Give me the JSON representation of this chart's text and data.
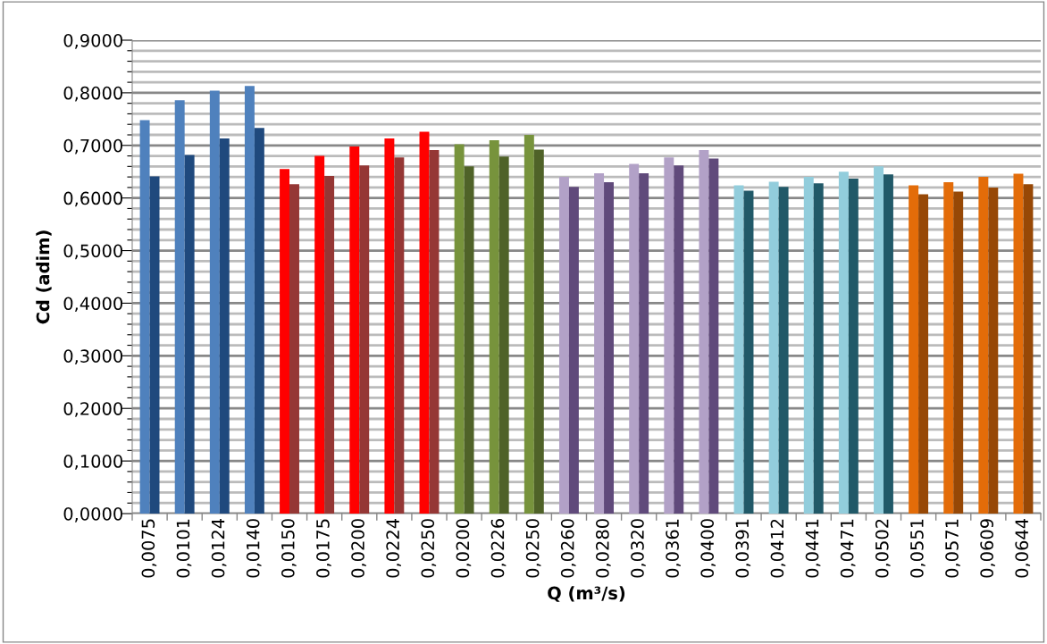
{
  "chart_data": {
    "type": "bar",
    "xlabel": "Q (m³/s)",
    "ylabel": "Cd (adim)",
    "categories": [
      "0,0075",
      "0,0101",
      "0,0124",
      "0,0140",
      "0,0150",
      "0,0175",
      "0,0200",
      "0,0224",
      "0,0250",
      "0,0200",
      "0,0226",
      "0,0250",
      "0,0260",
      "0,0280",
      "0,0320",
      "0,0361",
      "0,0400",
      "0,0391",
      "0,0412",
      "0,0441",
      "0,0471",
      "0,0502",
      "0,0551",
      "0,0571",
      "0,0609",
      "0,0644"
    ],
    "series": [
      {
        "values": [
          0.748,
          0.786,
          0.804,
          0.813,
          0.655,
          0.68,
          0.698,
          0.713,
          0.726,
          0.702,
          0.71,
          0.72,
          0.64,
          0.647,
          0.665,
          0.677,
          0.691,
          0.624,
          0.631,
          0.64,
          0.65,
          0.66,
          0.624,
          0.63,
          0.64,
          0.646
        ],
        "colors": [
          "#4f81bd",
          "#4f81bd",
          "#4f81bd",
          "#4f81bd",
          "#ff0000",
          "#ff0000",
          "#ff0000",
          "#ff0000",
          "#ff0000",
          "#77933c",
          "#77933c",
          "#77933c",
          "#b2a1c7",
          "#b2a1c7",
          "#b2a1c7",
          "#b2a1c7",
          "#b2a1c7",
          "#92cddc",
          "#92cddc",
          "#92cddc",
          "#92cddc",
          "#92cddc",
          "#e36c09",
          "#e36c09",
          "#e36c09",
          "#e36c09"
        ]
      },
      {
        "values": [
          0.641,
          0.682,
          0.713,
          0.733,
          0.626,
          0.642,
          0.662,
          0.677,
          0.691,
          0.66,
          0.679,
          0.692,
          0.621,
          0.63,
          0.647,
          0.662,
          0.675,
          0.614,
          0.621,
          0.628,
          0.637,
          0.645,
          0.607,
          0.612,
          0.62,
          0.626
        ],
        "colors": [
          "#1f497d",
          "#1f497d",
          "#1f497d",
          "#1f497d",
          "#953735",
          "#953735",
          "#953735",
          "#953735",
          "#953735",
          "#4f6228",
          "#4f6228",
          "#4f6228",
          "#604a7b",
          "#604a7b",
          "#604a7b",
          "#604a7b",
          "#604a7b",
          "#215968",
          "#215968",
          "#215968",
          "#215968",
          "#215968",
          "#974806",
          "#974806",
          "#974806",
          "#974806"
        ]
      }
    ],
    "ylim": [
      0,
      0.9
    ],
    "yticks": [
      {
        "value": 0,
        "label": "0,0000"
      },
      {
        "value": 0.02,
        "label": null
      },
      {
        "value": 0.04,
        "label": null
      },
      {
        "value": 0.06,
        "label": null
      },
      {
        "value": 0.08,
        "label": null
      },
      {
        "value": 0.1,
        "label": "0,1000"
      },
      {
        "value": 0.12,
        "label": null
      },
      {
        "value": 0.14,
        "label": null
      },
      {
        "value": 0.16,
        "label": null
      },
      {
        "value": 0.18,
        "label": null
      },
      {
        "value": 0.2,
        "label": "0,2000"
      },
      {
        "value": 0.22,
        "label": null
      },
      {
        "value": 0.24,
        "label": null
      },
      {
        "value": 0.26,
        "label": null
      },
      {
        "value": 0.28,
        "label": null
      },
      {
        "value": 0.3,
        "label": "0,3000"
      },
      {
        "value": 0.32,
        "label": null
      },
      {
        "value": 0.34,
        "label": null
      },
      {
        "value": 0.36,
        "label": null
      },
      {
        "value": 0.38,
        "label": null
      },
      {
        "value": 0.4,
        "label": "0,4000"
      },
      {
        "value": 0.42,
        "label": null
      },
      {
        "value": 0.44,
        "label": null
      },
      {
        "value": 0.46,
        "label": null
      },
      {
        "value": 0.48,
        "label": null
      },
      {
        "value": 0.5,
        "label": "0,5000"
      },
      {
        "value": 0.52,
        "label": null
      },
      {
        "value": 0.54,
        "label": null
      },
      {
        "value": 0.56,
        "label": null
      },
      {
        "value": 0.58,
        "label": null
      },
      {
        "value": 0.6,
        "label": "0,6000"
      },
      {
        "value": 0.62,
        "label": null
      },
      {
        "value": 0.64,
        "label": null
      },
      {
        "value": 0.66,
        "label": null
      },
      {
        "value": 0.68,
        "label": null
      },
      {
        "value": 0.7,
        "label": "0,7000"
      },
      {
        "value": 0.72,
        "label": null
      },
      {
        "value": 0.74,
        "label": null
      },
      {
        "value": 0.76,
        "label": null
      },
      {
        "value": 0.78,
        "label": null
      },
      {
        "value": 0.8,
        "label": "0,8000"
      },
      {
        "value": 0.82,
        "label": null
      },
      {
        "value": 0.84,
        "label": null
      },
      {
        "value": 0.86,
        "label": null
      },
      {
        "value": 0.88,
        "label": null
      },
      {
        "value": 0.9,
        "label": "0,9000"
      }
    ],
    "grid": "y"
  }
}
